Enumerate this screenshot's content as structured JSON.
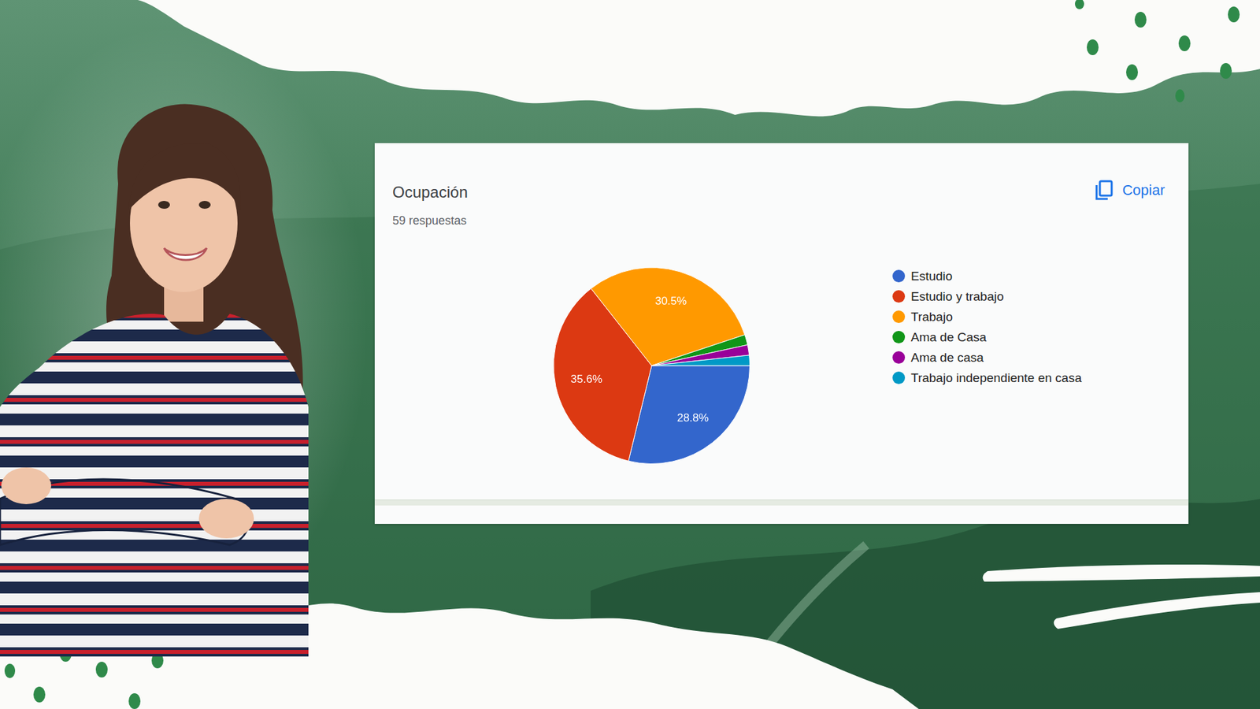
{
  "card": {
    "button": "Copiar"
  },
  "chart_data": {
    "type": "pie",
    "title": "Ocupación",
    "subtitle": "59 respuestas",
    "categories": [
      "Estudio",
      "Estudio y trabajo",
      "Trabajo",
      "Ama de Casa",
      "Ama de casa",
      "Trabajo independiente en casa"
    ],
    "values": [
      28.8,
      35.6,
      30.5,
      1.7,
      1.7,
      1.7
    ],
    "value_labels": [
      "28.8%",
      "35.6%",
      "30.5%",
      null,
      null,
      null
    ],
    "colors": [
      "#3366cc",
      "#dc3912",
      "#ff9900",
      "#109618",
      "#990099",
      "#0099c6"
    ],
    "legend": "right",
    "data_labels": true
  }
}
